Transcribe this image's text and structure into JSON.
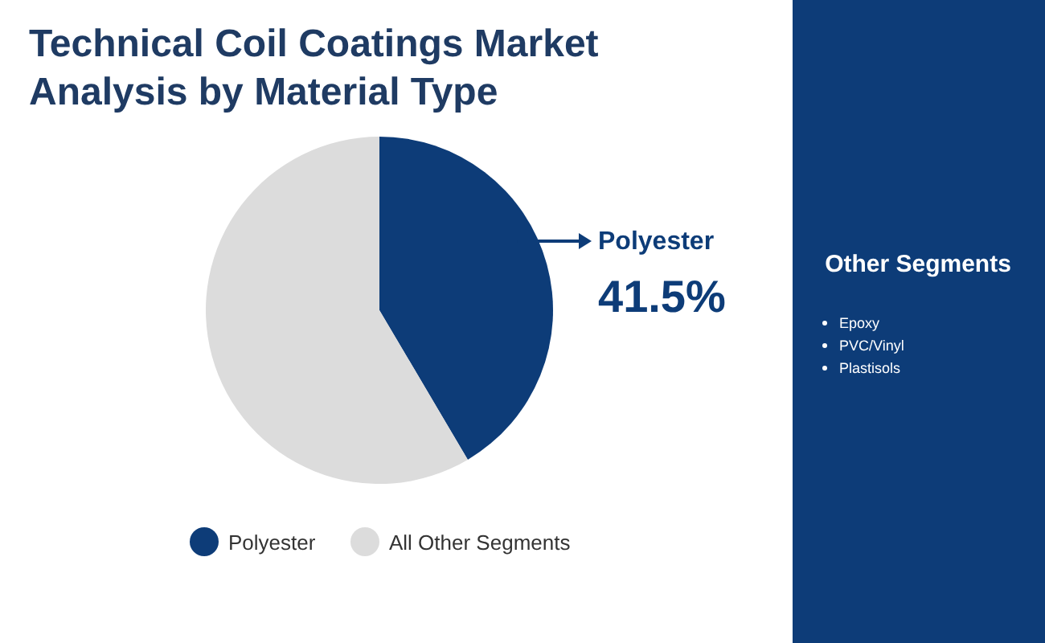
{
  "chart_data": {
    "type": "pie",
    "title": "Technical Coil Coatings Market Analysis by Material Type",
    "categories": [
      "Polyester",
      "All Other Segments"
    ],
    "values": [
      41.5,
      58.5
    ],
    "colors": [
      "#0d3c78",
      "#dcdcdc"
    ],
    "value_labels": [
      "41.5%",
      null
    ],
    "legend": "bottom",
    "annotations": [
      "Other Segments",
      "Epoxy",
      "PVC/Vinyl",
      "Plastisols"
    ]
  }
}
